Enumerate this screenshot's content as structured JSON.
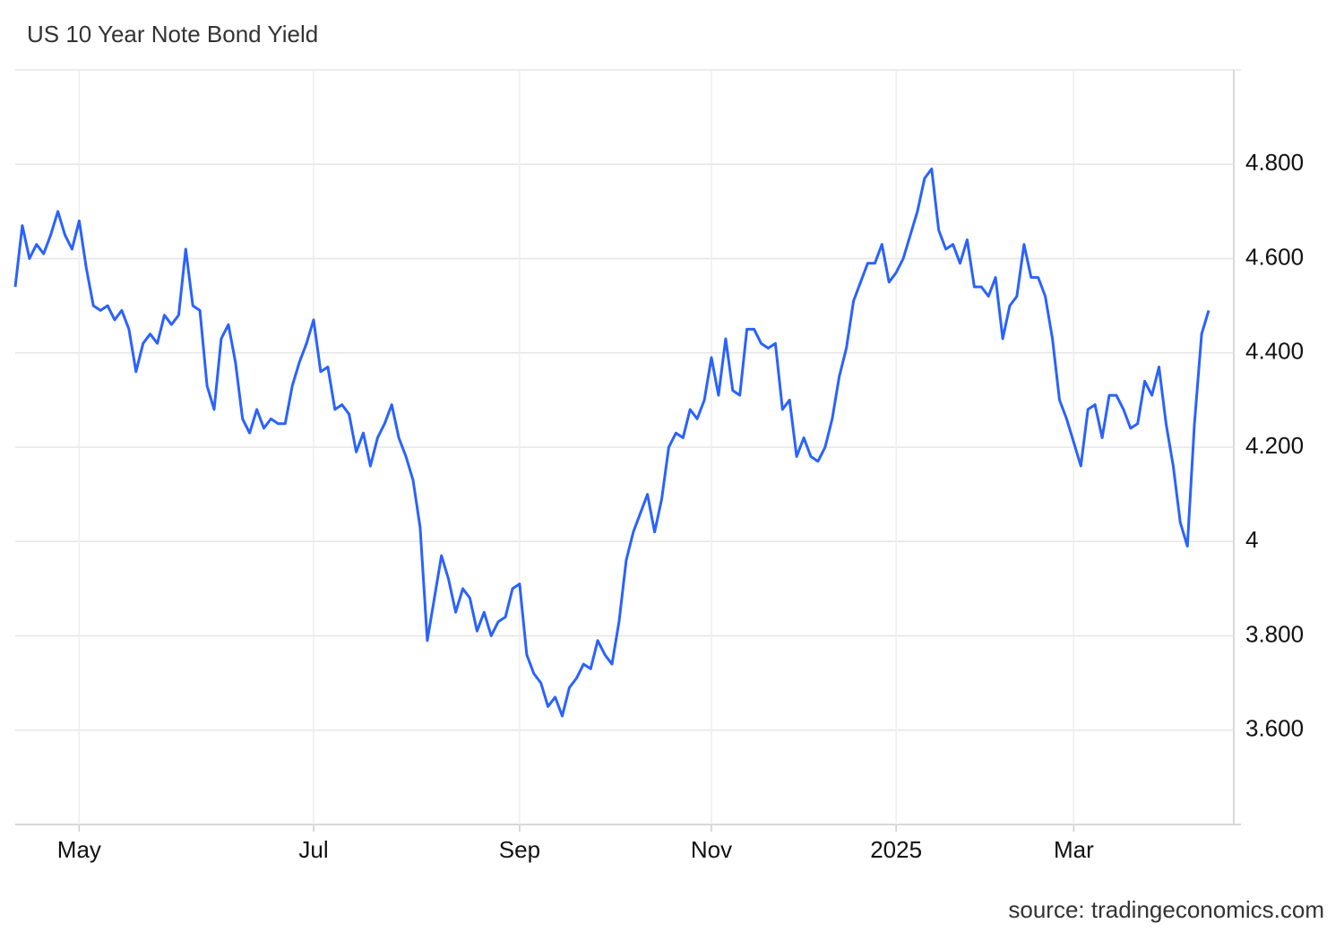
{
  "chart_data": {
    "type": "line",
    "title": "US 10 Year Note Bond Yield",
    "source": "source: tradingeconomics.com",
    "categories": [
      null,
      null,
      null,
      null,
      null,
      null,
      null,
      null,
      null,
      "May",
      null,
      null,
      null,
      null,
      null,
      null,
      null,
      null,
      null,
      null,
      null,
      null,
      null,
      null,
      null,
      null,
      null,
      null,
      null,
      null,
      null,
      null,
      null,
      null,
      null,
      null,
      null,
      null,
      null,
      null,
      null,
      null,
      "Jul",
      null,
      null,
      null,
      null,
      null,
      null,
      null,
      null,
      null,
      null,
      null,
      null,
      null,
      null,
      null,
      null,
      null,
      null,
      null,
      null,
      null,
      null,
      null,
      null,
      null,
      null,
      null,
      null,
      "Sep",
      null,
      null,
      null,
      null,
      null,
      null,
      null,
      null,
      null,
      null,
      null,
      null,
      null,
      null,
      null,
      null,
      null,
      null,
      null,
      null,
      null,
      null,
      null,
      null,
      null,
      null,
      "Nov",
      null,
      null,
      null,
      null,
      null,
      null,
      null,
      null,
      null,
      null,
      null,
      null,
      null,
      null,
      null,
      null,
      null,
      null,
      null,
      null,
      null,
      null,
      null,
      null,
      null,
      "2025",
      null,
      null,
      null,
      null,
      null,
      null,
      null,
      null,
      null,
      null,
      null,
      null,
      null,
      null,
      null,
      null,
      null,
      null,
      null,
      null,
      null,
      null,
      null,
      null,
      "Mar",
      null,
      null,
      null,
      null,
      null,
      null,
      null,
      null,
      null,
      null,
      null,
      null,
      null,
      null,
      null,
      null,
      null,
      null,
      null
    ],
    "values": [
      4.54,
      4.67,
      4.6,
      4.63,
      4.61,
      4.65,
      4.7,
      4.65,
      4.62,
      4.68,
      4.58,
      4.5,
      4.49,
      4.5,
      4.47,
      4.49,
      4.45,
      4.36,
      4.42,
      4.44,
      4.42,
      4.48,
      4.46,
      4.48,
      4.62,
      4.5,
      4.49,
      4.33,
      4.28,
      4.43,
      4.46,
      4.38,
      4.26,
      4.23,
      4.28,
      4.24,
      4.26,
      4.25,
      4.25,
      4.33,
      4.38,
      4.42,
      4.47,
      4.36,
      4.37,
      4.28,
      4.29,
      4.27,
      4.19,
      4.23,
      4.16,
      4.22,
      4.25,
      4.29,
      4.22,
      4.18,
      4.13,
      4.03,
      3.79,
      3.88,
      3.97,
      3.92,
      3.85,
      3.9,
      3.88,
      3.81,
      3.85,
      3.8,
      3.83,
      3.84,
      3.9,
      3.91,
      3.76,
      3.72,
      3.7,
      3.65,
      3.67,
      3.63,
      3.69,
      3.71,
      3.74,
      3.73,
      3.79,
      3.76,
      3.74,
      3.83,
      3.96,
      4.02,
      4.06,
      4.1,
      4.02,
      4.09,
      4.2,
      4.23,
      4.22,
      4.28,
      4.26,
      4.3,
      4.39,
      4.31,
      4.43,
      4.32,
      4.31,
      4.45,
      4.45,
      4.42,
      4.41,
      4.42,
      4.28,
      4.3,
      4.18,
      4.22,
      4.18,
      4.17,
      4.2,
      4.26,
      4.35,
      4.41,
      4.51,
      4.55,
      4.59,
      4.59,
      4.63,
      4.55,
      4.57,
      4.6,
      4.65,
      4.7,
      4.77,
      4.79,
      4.66,
      4.62,
      4.63,
      4.59,
      4.64,
      4.54,
      4.54,
      4.52,
      4.56,
      4.43,
      4.5,
      4.52,
      4.63,
      4.56,
      4.56,
      4.52,
      4.43,
      4.3,
      4.26,
      4.21,
      4.16,
      4.28,
      4.29,
      4.22,
      4.31,
      4.31,
      4.28,
      4.24,
      4.25,
      4.34,
      4.31,
      4.37,
      4.25,
      4.16,
      4.04,
      3.99,
      4.25,
      4.44,
      4.49
    ],
    "color": "#2962ff",
    "ylim": [
      3.4,
      5.0
    ],
    "yticks": [
      {
        "value": 3.6,
        "label": "3.600"
      },
      {
        "value": 3.8,
        "label": "3.800"
      },
      4,
      {
        "value": 4.2,
        "label": "4.200"
      },
      {
        "value": 4.4,
        "label": "4.400"
      },
      {
        "value": 4.6,
        "label": "4.600"
      },
      {
        "value": 4.8,
        "label": "4.800"
      }
    ],
    "grid": true
  }
}
